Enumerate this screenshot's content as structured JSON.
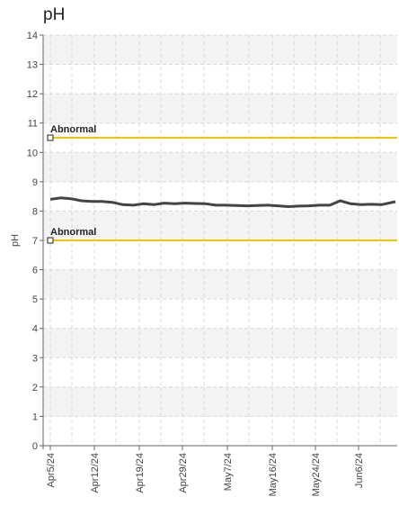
{
  "chart_data": {
    "type": "line",
    "title": "pH",
    "ylabel": "pH",
    "xlabel": "",
    "ylim": [
      0,
      14
    ],
    "yticks": [
      0,
      1,
      2,
      3,
      4,
      5,
      6,
      7,
      8,
      9,
      10,
      11,
      12,
      13,
      14
    ],
    "x_tick_labels": [
      "Apr5/24",
      "Apr12/24",
      "Apr19/24",
      "Apr29/24",
      "May7/24",
      "May16/24",
      "May24/24",
      "Jun6/24"
    ],
    "grid": true,
    "series": [
      {
        "color": "#444444",
        "points": [
          [
            0.0,
            8.4
          ],
          [
            0.03,
            8.45
          ],
          [
            0.06,
            8.42
          ],
          [
            0.09,
            8.35
          ],
          [
            0.12,
            8.33
          ],
          [
            0.15,
            8.33
          ],
          [
            0.18,
            8.3
          ],
          [
            0.21,
            8.22
          ],
          [
            0.24,
            8.2
          ],
          [
            0.27,
            8.25
          ],
          [
            0.3,
            8.22
          ],
          [
            0.33,
            8.27
          ],
          [
            0.36,
            8.25
          ],
          [
            0.39,
            8.27
          ],
          [
            0.42,
            8.26
          ],
          [
            0.45,
            8.25
          ],
          [
            0.48,
            8.2
          ],
          [
            0.51,
            8.2
          ],
          [
            0.54,
            8.19
          ],
          [
            0.57,
            8.18
          ],
          [
            0.6,
            8.19
          ],
          [
            0.63,
            8.2
          ],
          [
            0.66,
            8.18
          ],
          [
            0.69,
            8.15
          ],
          [
            0.72,
            8.17
          ],
          [
            0.75,
            8.18
          ],
          [
            0.78,
            8.2
          ],
          [
            0.81,
            8.2
          ],
          [
            0.84,
            8.35
          ],
          [
            0.87,
            8.25
          ],
          [
            0.9,
            8.22
          ],
          [
            0.93,
            8.23
          ],
          [
            0.96,
            8.22
          ],
          [
            1.0,
            8.32
          ]
        ]
      }
    ],
    "reference_lines": [
      {
        "value": 10.5,
        "label": "Abnormal",
        "color": "#f2c400"
      },
      {
        "value": 7.0,
        "label": "Abnormal",
        "color": "#f2c400"
      }
    ]
  }
}
